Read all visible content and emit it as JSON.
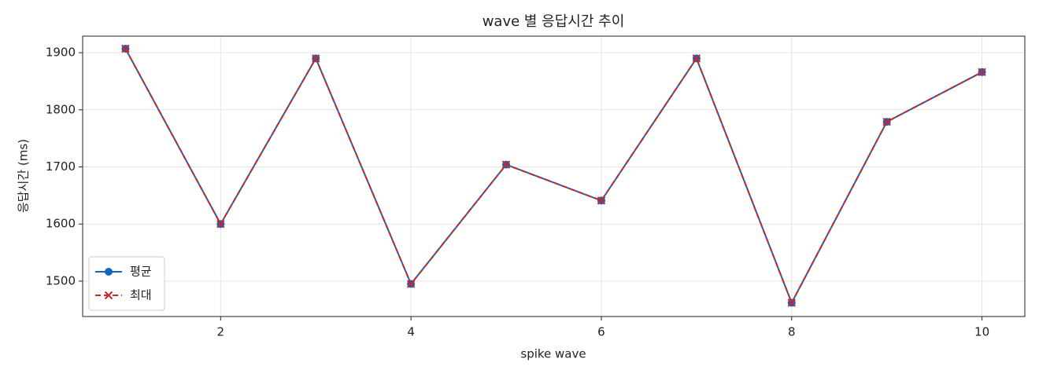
{
  "chart_data": {
    "type": "line",
    "title": "wave 별 응답시간 추이",
    "x_label": "spike wave",
    "y_label": "응답시간 (ms)",
    "x": [
      1,
      2,
      3,
      4,
      5,
      6,
      7,
      8,
      9,
      10
    ],
    "series": [
      {
        "name": "평균",
        "color": "#1565c0",
        "linestyle": "solid",
        "marker": "o",
        "values": [
          1907,
          1600,
          1890,
          1495,
          1704,
          1641,
          1890,
          1462,
          1779,
          1866
        ]
      },
      {
        "name": "최대",
        "color": "#c62828",
        "linestyle": "dashed",
        "marker": "x",
        "values": [
          1907,
          1600,
          1890,
          1495,
          1704,
          1641,
          1890,
          1462,
          1779,
          1866
        ]
      }
    ],
    "xlim": [
      0.55,
      10.45
    ],
    "xticks": [
      2,
      4,
      6,
      8,
      10
    ],
    "ylim": [
      1438,
      1929
    ],
    "yticks": [
      1500,
      1600,
      1700,
      1800,
      1900
    ],
    "grid": true,
    "legend": "lower left"
  }
}
